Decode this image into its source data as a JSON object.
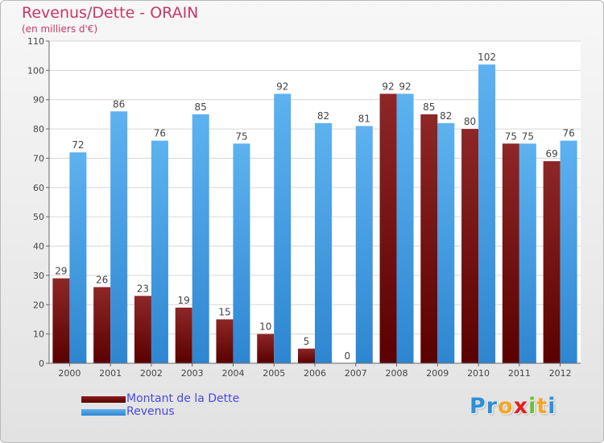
{
  "chart_data": {
    "type": "bar",
    "title": "Revenus/Dette - ORAIN",
    "subtitle": "(en milliers d'€)",
    "categories": [
      "2000",
      "2001",
      "2002",
      "2003",
      "2004",
      "2005",
      "2006",
      "2007",
      "2008",
      "2009",
      "2010",
      "2011",
      "2012"
    ],
    "series": [
      {
        "name": "Montant de la Dette",
        "values": [
          29,
          26,
          23,
          19,
          15,
          10,
          5,
          0,
          92,
          85,
          80,
          75,
          69
        ],
        "color": "#7a1515"
      },
      {
        "name": "Revenus",
        "values": [
          72,
          86,
          76,
          85,
          75,
          92,
          82,
          81,
          92,
          82,
          102,
          75,
          76
        ],
        "color": "#4aa3e6"
      }
    ],
    "ylim": [
      0,
      110
    ],
    "yticks": [
      0,
      10,
      20,
      30,
      40,
      50,
      60,
      70,
      80,
      90,
      100,
      110
    ],
    "grid": true,
    "legend_position": "bottom-left",
    "data_labels": true
  },
  "logo": {
    "letters": [
      {
        "ch": "P",
        "color": "#2e8fd6"
      },
      {
        "ch": "r",
        "color": "#2e8fd6"
      },
      {
        "ch": "o",
        "color": "#f5a623"
      },
      {
        "ch": "x",
        "color": "#e02020"
      },
      {
        "ch": "i",
        "color": "#6cbf3a"
      },
      {
        "ch": "t",
        "color": "#f5a623"
      },
      {
        "ch": "i",
        "color": "#2e8fd6"
      }
    ]
  }
}
